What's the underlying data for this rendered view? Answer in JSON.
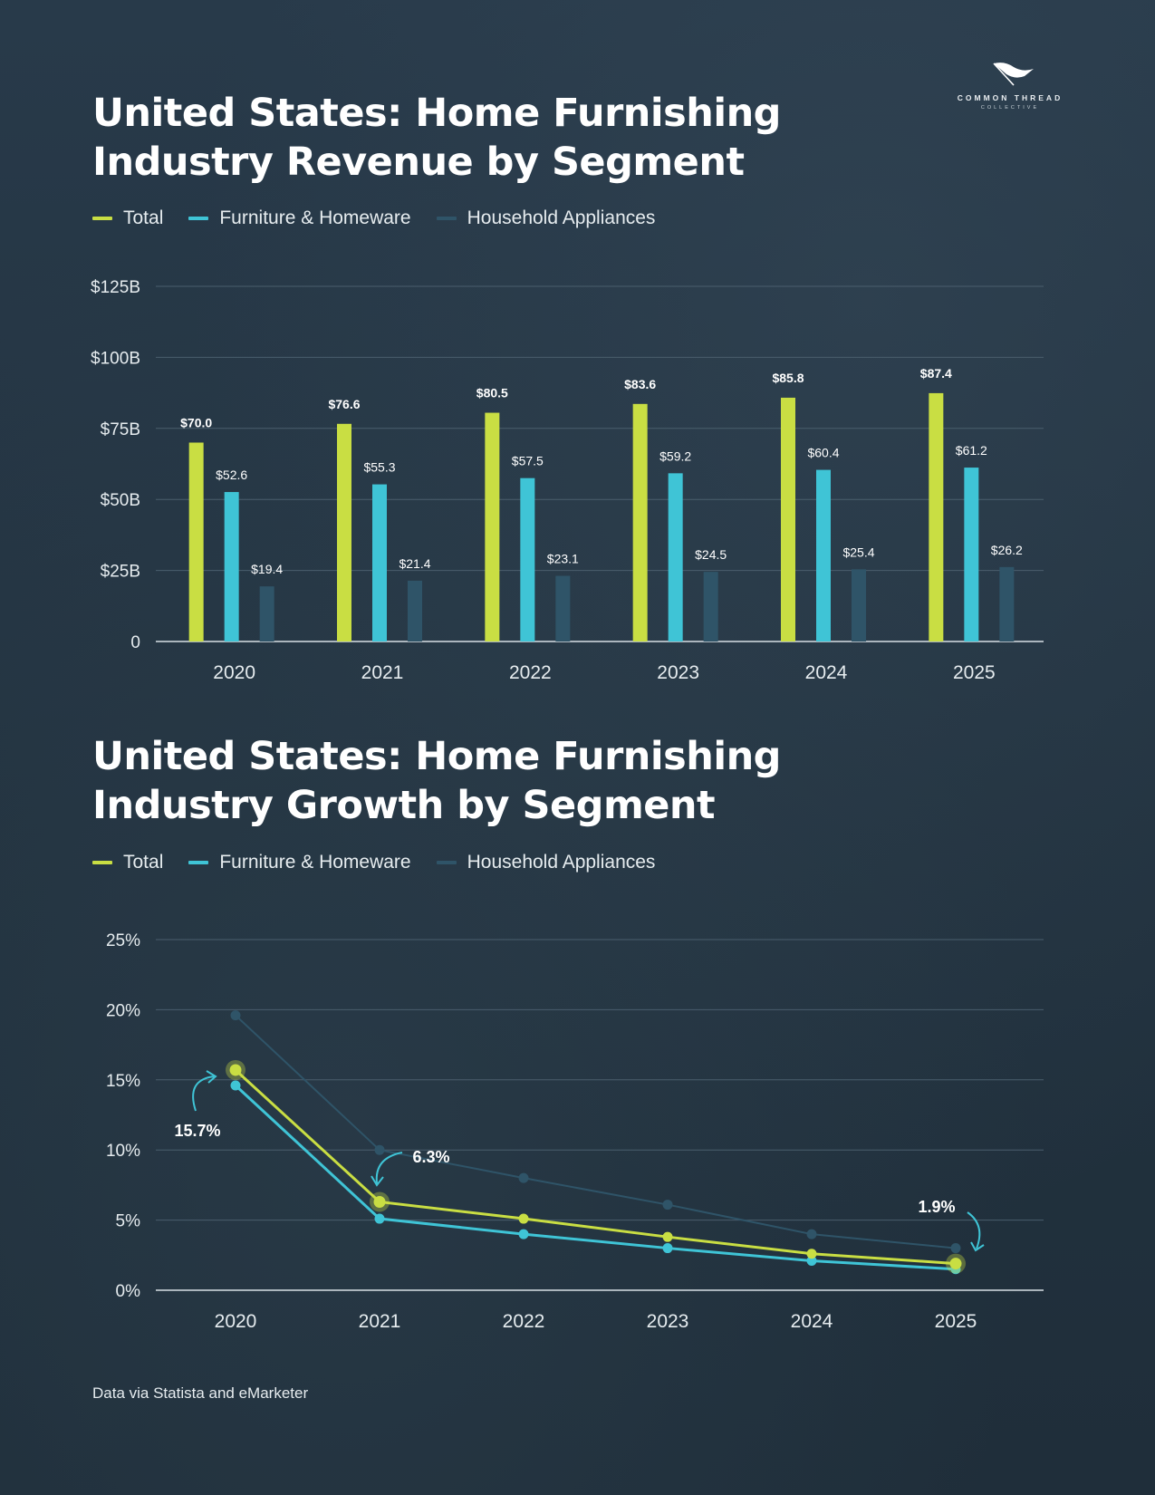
{
  "logo": {
    "text": "COMMON THREAD",
    "subtext": "COLLECTIVE"
  },
  "colors": {
    "total": "#c9de43",
    "furniture": "#3fc4d6",
    "appliances": "#2f5468",
    "grid": "#4a5e6d",
    "label": "#e6ecef"
  },
  "chart_data": [
    {
      "type": "bar",
      "title": "United States: Home Furnishing Industry Revenue by Segment",
      "categories": [
        "2020",
        "2021",
        "2022",
        "2023",
        "2024",
        "2025"
      ],
      "series": [
        {
          "name": "Total",
          "values": [
            70.0,
            76.6,
            80.5,
            83.6,
            85.8,
            87.4
          ],
          "labels": [
            "$70.0",
            "$76.6",
            "$80.5",
            "$83.6",
            "$85.8",
            "$87.4"
          ]
        },
        {
          "name": "Furniture & Homeware",
          "values": [
            52.6,
            55.3,
            57.5,
            59.2,
            60.4,
            61.2
          ],
          "labels": [
            "$52.6",
            "$55.3",
            "$57.5",
            "$59.2",
            "$60.4",
            "$61.2"
          ]
        },
        {
          "name": "Household Appliances",
          "values": [
            19.4,
            21.4,
            23.1,
            24.5,
            25.4,
            26.2
          ],
          "labels": [
            "$19.4",
            "$21.4",
            "$23.1",
            "$24.5",
            "$25.4",
            "$26.2"
          ]
        }
      ],
      "ylim": [
        0,
        125
      ],
      "yticks": [
        0,
        25,
        50,
        75,
        100,
        125
      ],
      "ytick_labels": [
        "0",
        "$25B",
        "$50B",
        "$75B",
        "$100B",
        "$125B"
      ],
      "grid": true
    },
    {
      "type": "line",
      "title": "United States: Home Furnishing Industry Growth by Segment",
      "x": [
        "2020",
        "2021",
        "2022",
        "2023",
        "2024",
        "2025"
      ],
      "series": [
        {
          "name": "Total",
          "values": [
            15.7,
            6.3,
            5.1,
            3.8,
            2.6,
            1.9
          ]
        },
        {
          "name": "Furniture & Homeware",
          "values": [
            14.6,
            5.1,
            4.0,
            3.0,
            2.1,
            1.5
          ]
        },
        {
          "name": "Household Appliances",
          "values": [
            19.6,
            10.0,
            8.0,
            6.1,
            4.0,
            3.0
          ]
        }
      ],
      "annotations": [
        "15.7%",
        "6.3%",
        "1.9%"
      ],
      "ylim": [
        0,
        25
      ],
      "yticks": [
        0,
        5,
        10,
        15,
        20,
        25
      ],
      "ytick_labels": [
        "0%",
        "5%",
        "10%",
        "15%",
        "20%",
        "25%"
      ],
      "grid": true
    }
  ],
  "legend": {
    "total": "Total",
    "furniture": "Furniture & Homeware",
    "appliances": "Household Appliances"
  },
  "source": "Data via Statista  and eMarketer"
}
